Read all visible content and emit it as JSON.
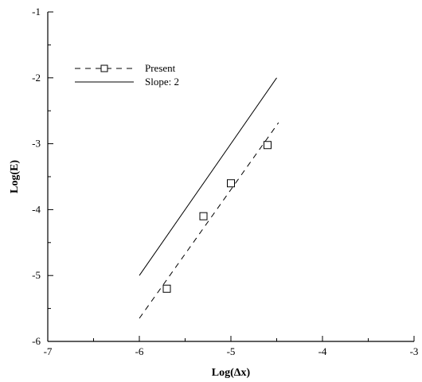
{
  "chart_data": {
    "type": "line",
    "title": "",
    "xlabel": "Log(Δx)",
    "ylabel": "Log(E)",
    "xlim": [
      -7,
      -3
    ],
    "ylim": [
      -6,
      -1
    ],
    "x_ticks": [
      -7,
      -6,
      -5,
      -4,
      -3
    ],
    "x_tick_labels": [
      "-7",
      "-6",
      "-5",
      "-4",
      "-3"
    ],
    "y_ticks": [
      -6,
      -5,
      -4,
      -3,
      -2,
      -1
    ],
    "y_tick_labels": [
      "-6",
      "-5",
      "-4",
      "-3",
      "-2",
      "-1"
    ],
    "grid": false,
    "legend_position": "top-left",
    "series": [
      {
        "name": "Present",
        "style": "dashed line with square markers",
        "color": "#000000",
        "line": {
          "x": [
            -6.0,
            -4.48
          ],
          "y": [
            -5.65,
            -2.68
          ]
        },
        "markers": {
          "x": [
            -5.7,
            -5.3,
            -5.0,
            -4.6
          ],
          "y": [
            -5.2,
            -4.1,
            -3.6,
            -3.02
          ]
        }
      },
      {
        "name": "Slope: 2",
        "style": "solid line",
        "color": "#000000",
        "line": {
          "x": [
            -6.0,
            -4.5
          ],
          "y": [
            -5.0,
            -2.0
          ]
        }
      }
    ]
  }
}
